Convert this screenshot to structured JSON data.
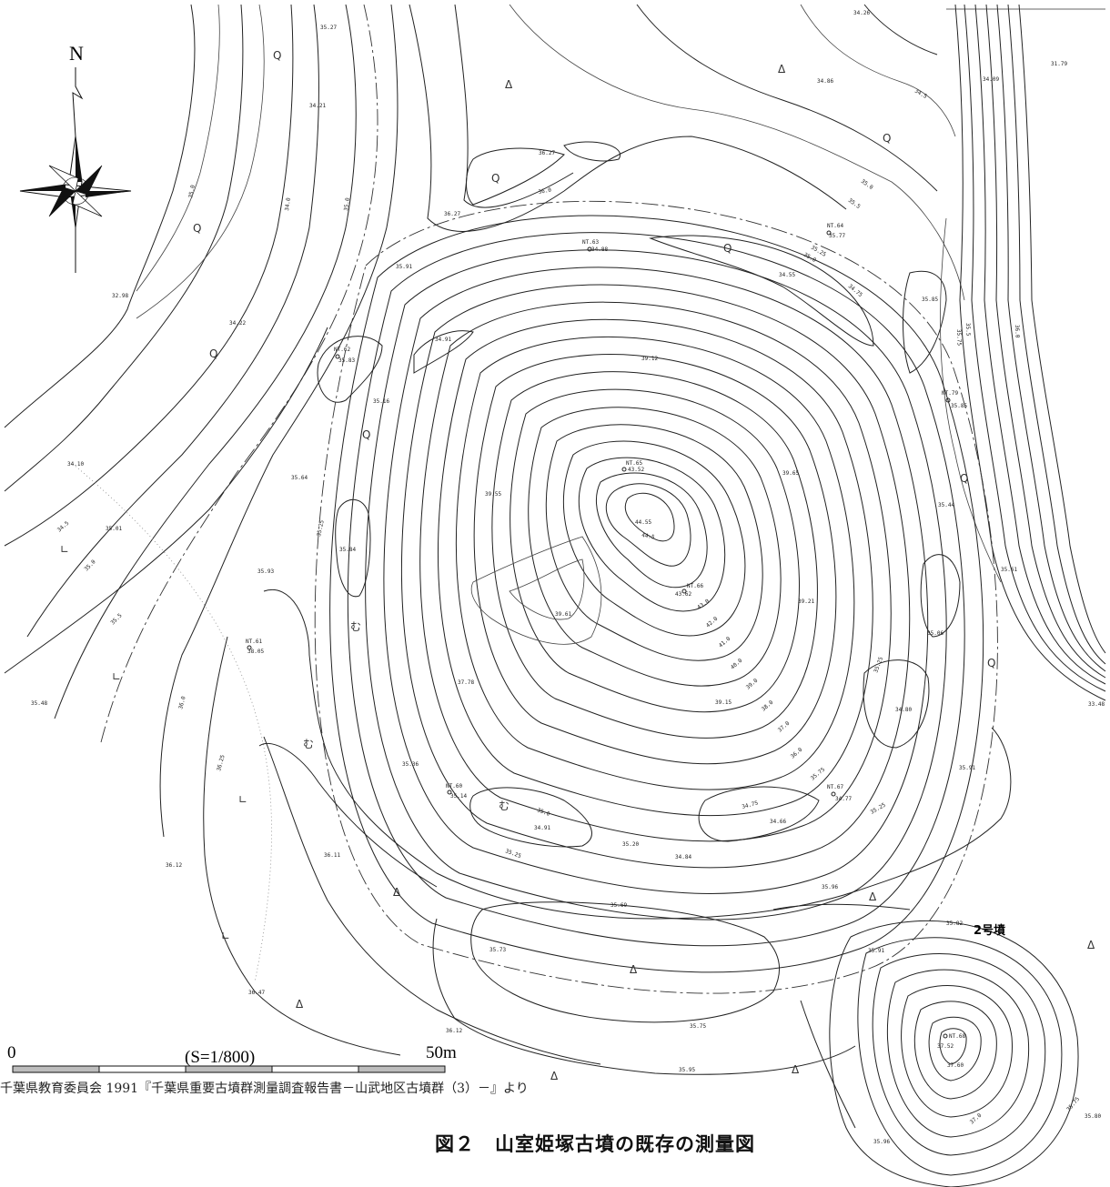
{
  "north_label": "N",
  "scale": {
    "start_label": "0",
    "end_label": "50m",
    "ratio_label": "(S=1/800)"
  },
  "mound2_label": "2号墳",
  "source_note": "千葉県教育委員会 1991『千葉県重要古墳群測量調査報告書－山武地区古墳群（3）－』より",
  "caption": "図２　山室姫塚古墳の既存の測量図",
  "spot_heights": [
    "34.26",
    "31.79",
    "34.09",
    "34.86",
    "35.27",
    "34.21",
    "36.27",
    "36.27",
    "32.98",
    "34.22",
    "35.91",
    "34.88",
    "35.77",
    "34.55",
    "35.85",
    "35.83",
    "34.91",
    "39.12",
    "35.16",
    "35.85",
    "34.10",
    "43.52",
    "35.64",
    "39.55",
    "39.65",
    "35.44",
    "35.01",
    "35.84",
    "44.55",
    "35.93",
    "43.62",
    "35.61",
    "39.61",
    "39.21",
    "35.06",
    "38.05",
    "35.48",
    "37.78",
    "39.15",
    "34.80",
    "33.48",
    "35.36",
    "35.91",
    "35.14",
    "34.77",
    "34.91",
    "34.66",
    "36.12",
    "36.11",
    "35.20",
    "34.84",
    "35.96",
    "35.69",
    "35.82",
    "35.73",
    "35.91",
    "36.47",
    "36.12",
    "35.75",
    "37.52",
    "37.60",
    "35.95",
    "35.80",
    "35.96"
  ],
  "contour_labels": [
    "35.0",
    "34.0",
    "35.0",
    "34.5",
    "35.0",
    "35.25",
    "35.5",
    "34.5",
    "35.0",
    "35.5",
    "36.0",
    "35.25",
    "35.0",
    "34.75",
    "35.5",
    "35.75",
    "36.0",
    "44.5",
    "43.0",
    "42.0",
    "41.0",
    "40.0",
    "39.0",
    "38.0",
    "37.0",
    "36.0",
    "35.75",
    "35.25",
    "35.0",
    "34.75",
    "35.25",
    "35.25",
    "36.0",
    "36.25",
    "37.0",
    "35.75"
  ],
  "benchmarks": [
    "NT.63",
    "NT.64",
    "NT.62",
    "NT.79",
    "NT.65",
    "NT.66",
    "NT.61",
    "NT.60",
    "NT.67",
    "NT.68"
  ]
}
